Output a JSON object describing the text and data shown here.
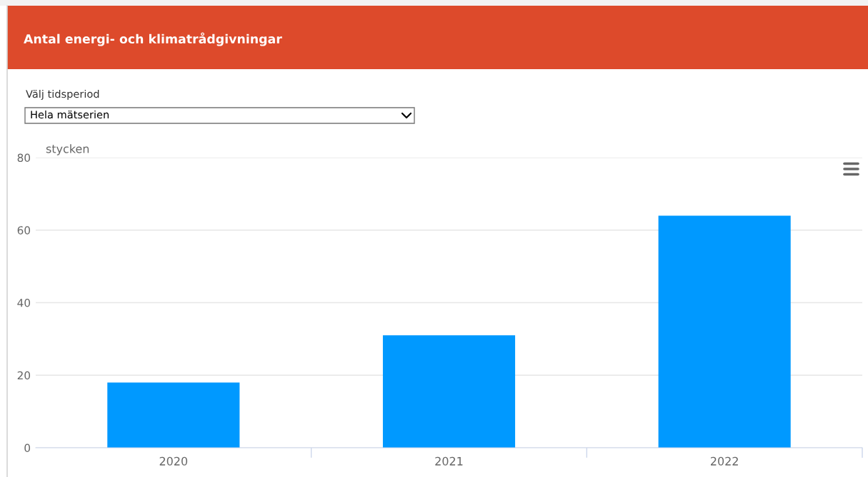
{
  "chart_data": {
    "type": "bar",
    "title": "Antal energi- och klimatrådgivningar",
    "ylabel": "stycken",
    "annotations": [
      "Välj tidsperiod",
      "Hela mätserien"
    ],
    "categories": [
      "2020",
      "2021",
      "2022"
    ],
    "values": [
      18,
      31,
      64
    ],
    "color": "#0099ff",
    "ylim": [
      0,
      80
    ],
    "yticks": [
      0,
      20,
      40,
      60,
      80
    ],
    "grid": "y"
  }
}
